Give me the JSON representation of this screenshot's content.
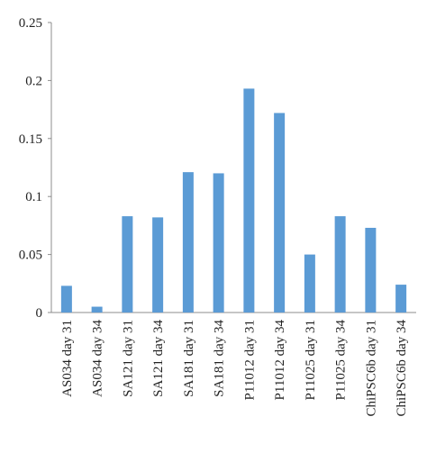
{
  "chart_data": {
    "type": "bar",
    "categories": [
      "AS034 day 31",
      "AS034 day 34",
      "SA121 day 31",
      "SA121 day 34",
      "SA181 day 31",
      "SA181 day 34",
      "P11012 day 31",
      "P11012 day 34",
      "P11025 day 31",
      "P11025 day 34",
      "ChiPSC6b day 31",
      "ChiPSC6b day 34"
    ],
    "values": [
      0.023,
      0.005,
      0.083,
      0.082,
      0.121,
      0.12,
      0.193,
      0.172,
      0.05,
      0.083,
      0.073,
      0.024
    ],
    "color": "#5b9bd5",
    "ylim": [
      0,
      0.25
    ],
    "yticks": [
      0,
      0.05,
      0.1,
      0.15,
      0.2,
      0.25
    ],
    "grid": false
  }
}
